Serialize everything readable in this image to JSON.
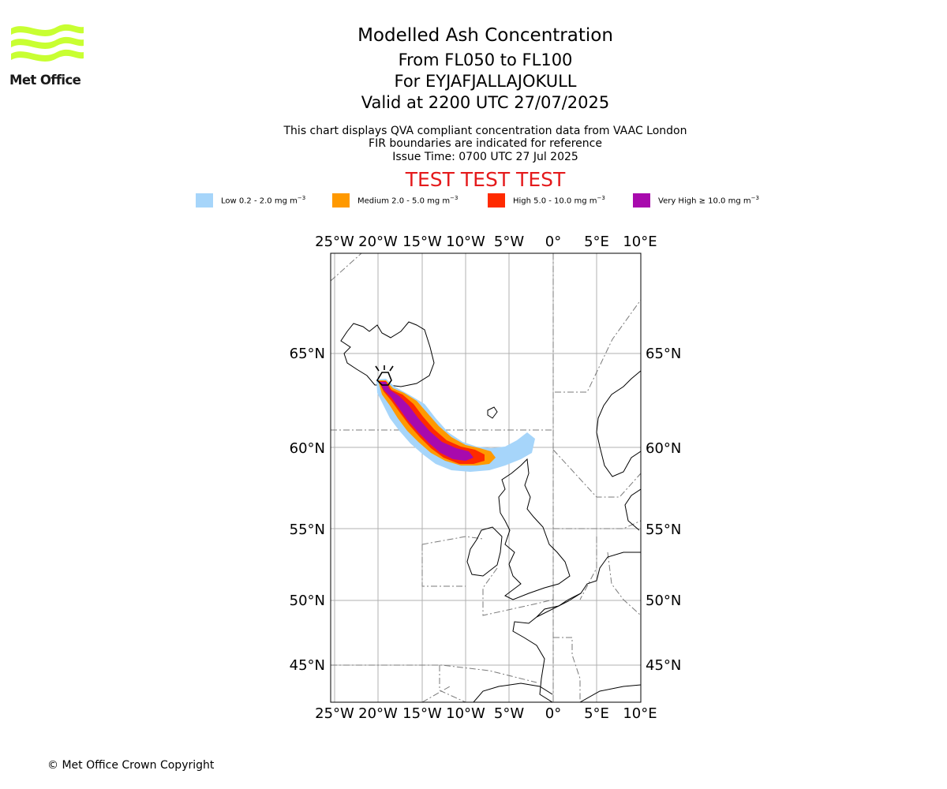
{
  "logo": {
    "name": "Met Office"
  },
  "titles": {
    "main": "Modelled Ash Concentration",
    "levels": "From FL050 to FL100",
    "volcano": "For EYJAFJALLAJOKULL",
    "valid": "Valid at 2200 UTC 27/07/2025"
  },
  "subtitles": {
    "line1": "This chart displays QVA compliant concentration data from VAAC London",
    "line2": "FIR boundaries are indicated for reference",
    "line3": "Issue Time: 0700 UTC 27 Jul 2025"
  },
  "test_banner": "TEST TEST TEST",
  "legend": [
    {
      "label": "Low 0.2 - 2.0 mg m",
      "color": "#a6d5fa"
    },
    {
      "label": "Medium 2.0 - 5.0 mg m",
      "color": "#ff9900"
    },
    {
      "label": "High 5.0 - 10.0 mg m",
      "color": "#ff2a00"
    },
    {
      "label": "Very High ≥ 10.0 mg m",
      "color": "#a80aad"
    }
  ],
  "legend_unit_sup": "−3",
  "axes": {
    "lon_labels": [
      "25°W",
      "20°W",
      "15°W",
      "10°W",
      "5°W",
      "0°",
      "5°E",
      "10°E"
    ],
    "lat_labels": [
      "65°N",
      "60°N",
      "55°N",
      "50°N",
      "45°N"
    ]
  },
  "copyright": "© Met Office Crown Copyright"
}
